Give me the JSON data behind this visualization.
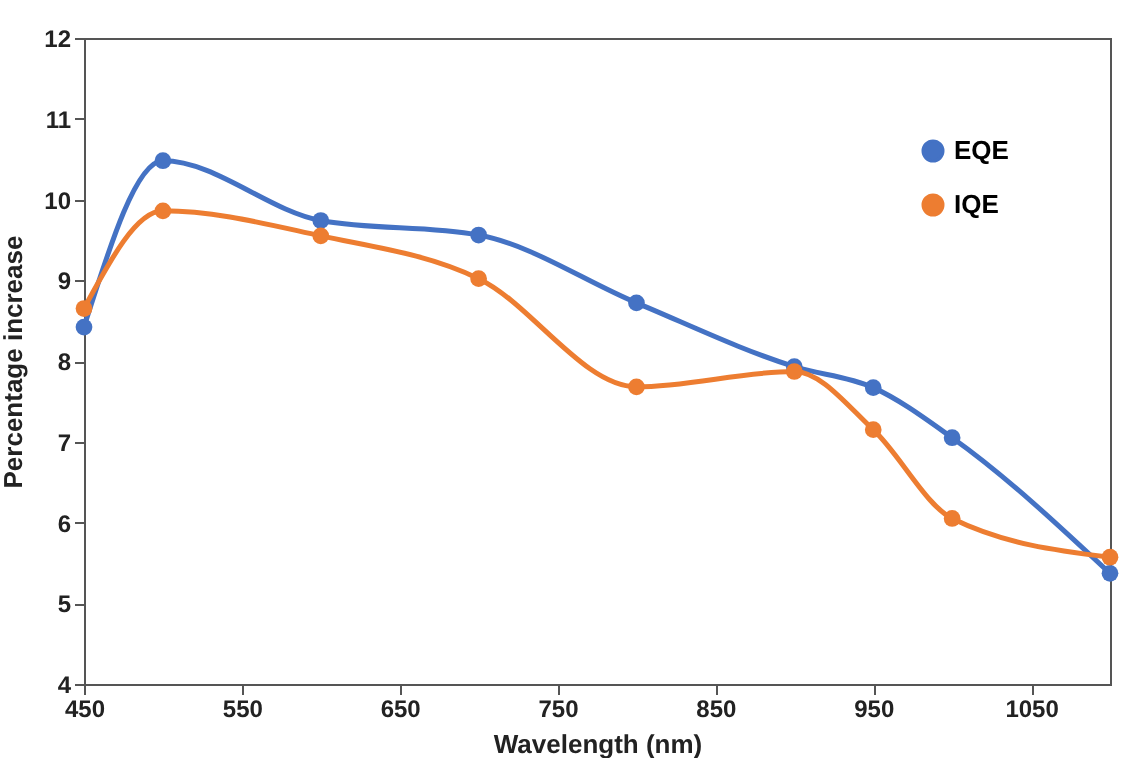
{
  "chart_data": {
    "type": "line",
    "xlabel": "Wavelength (nm)",
    "ylabel": "Percentage increase",
    "x": [
      450,
      500,
      600,
      700,
      800,
      900,
      950,
      1000,
      1100
    ],
    "series": [
      {
        "name": "EQE",
        "color": "#4472c4",
        "values": [
          8.42,
          10.48,
          9.74,
          9.56,
          8.72,
          7.93,
          7.67,
          7.05,
          5.37
        ]
      },
      {
        "name": "IQE",
        "color": "#ed7d31",
        "values": [
          8.65,
          9.86,
          9.55,
          9.02,
          7.68,
          7.87,
          7.15,
          6.05,
          5.57
        ]
      }
    ],
    "xlim": [
      450,
      1100
    ],
    "xticks": [
      450,
      550,
      650,
      750,
      850,
      950,
      1050
    ],
    "ylim": [
      4,
      12
    ],
    "yticks": [
      4,
      5,
      6,
      7,
      8,
      9,
      10,
      11,
      12
    ],
    "grid": false,
    "legend": "top right",
    "marker": "circle",
    "line_style": "solid"
  }
}
